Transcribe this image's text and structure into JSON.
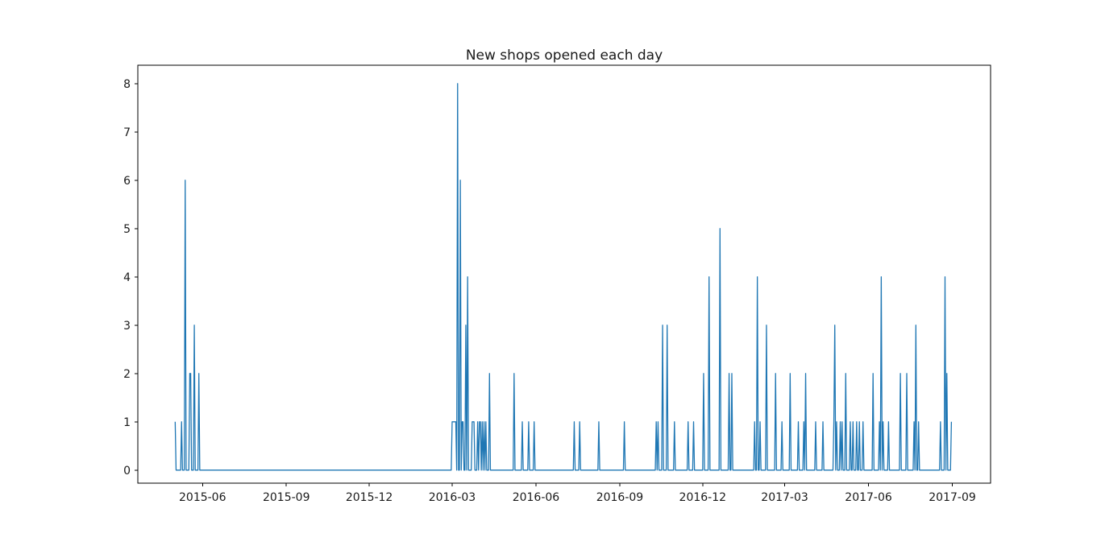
{
  "chart_data": {
    "type": "line",
    "title": "New shops opened each day",
    "xlabel": "",
    "ylabel": "",
    "grid": false,
    "legend": "none",
    "line_color": "#1f77b4",
    "axis_color": "#000000",
    "text_color": "#1a1a1a",
    "background_color": "#ffffff",
    "x_axis": {
      "min_date": "2015-03-22",
      "max_date": "2017-10-13",
      "ticks": [
        {
          "date": "2015-06-01",
          "label": "2015-06"
        },
        {
          "date": "2015-09-01",
          "label": "2015-09"
        },
        {
          "date": "2015-12-01",
          "label": "2015-12"
        },
        {
          "date": "2016-03-01",
          "label": "2016-03"
        },
        {
          "date": "2016-06-01",
          "label": "2016-06"
        },
        {
          "date": "2016-09-01",
          "label": "2016-09"
        },
        {
          "date": "2016-12-01",
          "label": "2016-12"
        },
        {
          "date": "2017-03-01",
          "label": "2017-03"
        },
        {
          "date": "2017-06-01",
          "label": "2017-06"
        },
        {
          "date": "2017-09-01",
          "label": "2017-09"
        }
      ]
    },
    "y_axis": {
      "min": -0.27,
      "max": 8.38,
      "ticks": [
        0,
        1,
        2,
        3,
        4,
        5,
        6,
        7,
        8
      ]
    },
    "series_name": "New shops opened",
    "series_start": "2015-05-02",
    "series_end": "2017-08-31",
    "baseline_value": 0,
    "spikes": [
      [
        "2015-05-02",
        1
      ],
      [
        "2015-05-09",
        1
      ],
      [
        "2015-05-13",
        6
      ],
      [
        "2015-05-18",
        2
      ],
      [
        "2015-05-19",
        2
      ],
      [
        "2015-05-23",
        3
      ],
      [
        "2015-05-28",
        2
      ],
      [
        "2016-03-01",
        1
      ],
      [
        "2016-03-02",
        1
      ],
      [
        "2016-03-03",
        1
      ],
      [
        "2016-03-04",
        1
      ],
      [
        "2016-03-05",
        1
      ],
      [
        "2016-03-07",
        8
      ],
      [
        "2016-03-10",
        6
      ],
      [
        "2016-03-12",
        1
      ],
      [
        "2016-03-13",
        1
      ],
      [
        "2016-03-16",
        3
      ],
      [
        "2016-03-18",
        4
      ],
      [
        "2016-03-23",
        1
      ],
      [
        "2016-03-24",
        1
      ],
      [
        "2016-03-25",
        1
      ],
      [
        "2016-03-29",
        1
      ],
      [
        "2016-03-31",
        1
      ],
      [
        "2016-04-01",
        1
      ],
      [
        "2016-04-03",
        1
      ],
      [
        "2016-04-05",
        1
      ],
      [
        "2016-04-07",
        1
      ],
      [
        "2016-04-11",
        2
      ],
      [
        "2016-05-08",
        2
      ],
      [
        "2016-05-17",
        1
      ],
      [
        "2016-05-24",
        1
      ],
      [
        "2016-05-30",
        1
      ],
      [
        "2016-07-13",
        1
      ],
      [
        "2016-07-19",
        1
      ],
      [
        "2016-08-09",
        1
      ],
      [
        "2016-09-06",
        1
      ],
      [
        "2016-10-11",
        1
      ],
      [
        "2016-10-13",
        1
      ],
      [
        "2016-10-18",
        3
      ],
      [
        "2016-10-23",
        3
      ],
      [
        "2016-10-31",
        1
      ],
      [
        "2016-11-15",
        1
      ],
      [
        "2016-11-21",
        1
      ],
      [
        "2016-12-02",
        2
      ],
      [
        "2016-12-08",
        4
      ],
      [
        "2016-12-20",
        5
      ],
      [
        "2016-12-30",
        2
      ],
      [
        "2017-01-02",
        2
      ],
      [
        "2017-01-27",
        1
      ],
      [
        "2017-01-30",
        4
      ],
      [
        "2017-02-02",
        1
      ],
      [
        "2017-02-09",
        3
      ],
      [
        "2017-02-19",
        2
      ],
      [
        "2017-02-26",
        1
      ],
      [
        "2017-03-07",
        2
      ],
      [
        "2017-03-16",
        1
      ],
      [
        "2017-03-22",
        1
      ],
      [
        "2017-03-24",
        2
      ],
      [
        "2017-04-04",
        1
      ],
      [
        "2017-04-12",
        1
      ],
      [
        "2017-04-24",
        1
      ],
      [
        "2017-04-25",
        3
      ],
      [
        "2017-04-27",
        1
      ],
      [
        "2017-05-01",
        1
      ],
      [
        "2017-05-03",
        1
      ],
      [
        "2017-05-07",
        2
      ],
      [
        "2017-05-12",
        1
      ],
      [
        "2017-05-15",
        1
      ],
      [
        "2017-05-19",
        1
      ],
      [
        "2017-05-22",
        1
      ],
      [
        "2017-05-26",
        1
      ],
      [
        "2017-06-06",
        2
      ],
      [
        "2017-06-13",
        1
      ],
      [
        "2017-06-15",
        4
      ],
      [
        "2017-06-17",
        1
      ],
      [
        "2017-06-23",
        1
      ],
      [
        "2017-07-06",
        2
      ],
      [
        "2017-07-13",
        2
      ],
      [
        "2017-07-21",
        1
      ],
      [
        "2017-07-23",
        3
      ],
      [
        "2017-07-26",
        1
      ],
      [
        "2017-08-19",
        1
      ],
      [
        "2017-08-24",
        4
      ],
      [
        "2017-08-26",
        2
      ],
      [
        "2017-08-31",
        1
      ]
    ]
  }
}
